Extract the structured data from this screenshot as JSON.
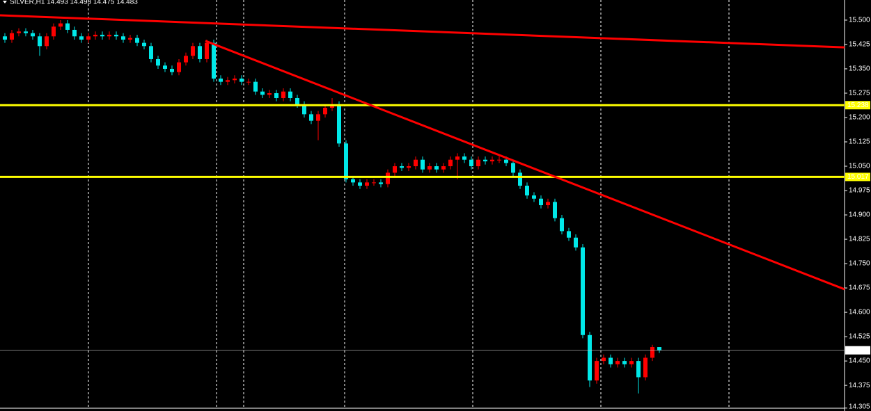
{
  "chart_data": {
    "type": "candlestick",
    "title": "SILVER,H1 14.493 14.493 14.475 14.483",
    "up_color": "#ff0000",
    "down_color": "#00e8e8",
    "xlim": [
      -0.7,
      120.6
    ],
    "ylim": [
      14.296,
      15.562
    ],
    "yticks": [
      {
        "value": 15.5,
        "label": "15.500"
      },
      15.425,
      {
        "value": 15.35,
        "label": "15.350"
      },
      15.275,
      {
        "value": 15.2,
        "label": "15.200"
      },
      15.125,
      {
        "value": 15.05,
        "label": "15.050"
      },
      14.975,
      {
        "value": 14.9,
        "label": "14.900"
      },
      14.825,
      {
        "value": 14.75,
        "label": "14.750"
      },
      14.675,
      {
        "value": 14.6,
        "label": "14.600"
      },
      14.525,
      {
        "value": 14.45,
        "label": "14.450"
      },
      14.375,
      14.305
    ],
    "open": [
      15.45,
      15.44,
      15.46,
      15.465,
      15.46,
      15.45,
      15.42,
      15.45,
      15.48,
      15.49,
      15.47,
      15.45,
      15.44,
      15.45,
      15.455,
      15.45,
      15.455,
      15.45,
      15.44,
      15.445,
      15.43,
      15.42,
      15.38,
      15.36,
      15.35,
      15.34,
      15.37,
      15.39,
      15.42,
      15.38,
      15.43,
      15.32,
      15.31,
      15.315,
      15.32,
      15.31,
      15.31,
      15.28,
      15.27,
      15.275,
      15.26,
      15.28,
      15.26,
      15.24,
      15.21,
      15.19,
      15.21,
      15.23,
      15.24,
      15.12,
      15.01,
      15.0,
      14.99,
      15.0,
      15.0,
      14.995,
      15.03,
      15.05,
      15.045,
      15.05,
      15.07,
      15.04,
      15.05,
      15.04,
      15.05,
      15.07,
      15.08,
      15.07,
      15.05,
      15.07,
      15.065,
      15.07,
      15.07,
      15.06,
      15.03,
      14.99,
      14.96,
      14.95,
      14.93,
      14.94,
      14.89,
      14.85,
      14.83,
      14.8,
      14.53,
      14.39,
      14.45,
      14.46,
      14.44,
      14.45,
      14.44,
      14.45,
      14.4,
      14.46,
      14.493
    ],
    "high": [
      15.46,
      15.47,
      15.475,
      15.475,
      15.47,
      15.46,
      15.46,
      15.49,
      15.5,
      15.5,
      15.48,
      15.46,
      15.46,
      15.465,
      15.465,
      15.465,
      15.465,
      15.46,
      15.455,
      15.455,
      15.44,
      15.43,
      15.39,
      15.37,
      15.36,
      15.38,
      15.4,
      15.43,
      15.43,
      15.44,
      15.44,
      15.33,
      15.325,
      15.33,
      15.33,
      15.32,
      15.32,
      15.29,
      15.285,
      15.285,
      15.29,
      15.29,
      15.27,
      15.25,
      15.22,
      15.22,
      15.24,
      15.26,
      15.25,
      15.13,
      15.02,
      15.01,
      15.01,
      15.01,
      15.01,
      15.04,
      15.06,
      15.06,
      15.06,
      15.08,
      15.08,
      15.06,
      15.06,
      15.06,
      15.08,
      15.09,
      15.09,
      15.08,
      15.08,
      15.08,
      15.08,
      15.08,
      15.08,
      15.07,
      15.04,
      15.0,
      14.97,
      14.96,
      14.95,
      14.95,
      14.9,
      14.86,
      14.84,
      14.81,
      14.54,
      14.46,
      14.47,
      14.47,
      14.46,
      14.46,
      14.46,
      14.46,
      14.47,
      14.5,
      14.493
    ],
    "low": [
      15.43,
      15.43,
      15.45,
      15.45,
      15.44,
      15.39,
      15.41,
      15.44,
      15.47,
      15.46,
      15.44,
      15.43,
      15.43,
      15.44,
      15.44,
      15.44,
      15.44,
      15.43,
      15.43,
      15.42,
      15.41,
      15.37,
      15.35,
      15.34,
      15.33,
      15.33,
      15.36,
      15.38,
      15.37,
      15.37,
      15.31,
      15.3,
      15.3,
      15.305,
      15.3,
      15.3,
      15.27,
      15.26,
      15.26,
      15.25,
      15.25,
      15.25,
      15.23,
      15.2,
      15.18,
      15.13,
      15.2,
      15.22,
      15.11,
      15.0,
      14.99,
      14.98,
      14.98,
      14.99,
      14.985,
      14.985,
      15.02,
      15.035,
      15.035,
      15.04,
      15.03,
      15.03,
      15.03,
      15.03,
      15.04,
      15.01,
      15.06,
      15.04,
      15.04,
      15.055,
      15.055,
      15.06,
      15.05,
      15.02,
      14.98,
      14.95,
      14.94,
      14.92,
      14.92,
      14.88,
      14.84,
      14.82,
      14.79,
      14.52,
      14.37,
      14.38,
      14.44,
      14.43,
      14.43,
      14.43,
      14.43,
      14.35,
      14.39,
      14.45,
      14.475
    ],
    "close": [
      15.44,
      15.46,
      15.465,
      15.46,
      15.45,
      15.42,
      15.45,
      15.48,
      15.49,
      15.47,
      15.45,
      15.44,
      15.45,
      15.455,
      15.45,
      15.455,
      15.45,
      15.44,
      15.445,
      15.43,
      15.42,
      15.38,
      15.36,
      15.35,
      15.34,
      15.37,
      15.39,
      15.42,
      15.38,
      15.43,
      15.32,
      15.31,
      15.315,
      15.32,
      15.31,
      15.31,
      15.28,
      15.27,
      15.275,
      15.26,
      15.28,
      15.26,
      15.24,
      15.21,
      15.19,
      15.21,
      15.23,
      15.24,
      15.12,
      15.01,
      15.0,
      14.99,
      15.0,
      15.0,
      14.995,
      15.03,
      15.05,
      15.045,
      15.05,
      15.07,
      15.04,
      15.05,
      15.04,
      15.05,
      15.07,
      15.08,
      15.07,
      15.05,
      15.07,
      15.065,
      15.07,
      15.07,
      15.06,
      15.03,
      14.99,
      14.96,
      14.95,
      14.93,
      14.94,
      14.89,
      14.85,
      14.83,
      14.8,
      14.53,
      14.39,
      14.45,
      14.46,
      14.44,
      14.45,
      14.44,
      14.45,
      14.4,
      14.46,
      14.493,
      14.483
    ],
    "hlines": [
      {
        "value": 15.238,
        "color": "#ffff00"
      },
      {
        "value": 15.017,
        "color": "#ffff00"
      }
    ],
    "last_price": {
      "value": 14.483,
      "color": "#c0c0c0"
    },
    "trendlines": [
      {
        "x": [
          -0.7,
          120.6
        ],
        "y": [
          15.515,
          15.416
        ],
        "color": "#ff0000"
      },
      {
        "x": [
          28.8,
          120.6
        ],
        "y": [
          15.436,
          14.671
        ],
        "color": "#ff0000"
      }
    ]
  }
}
